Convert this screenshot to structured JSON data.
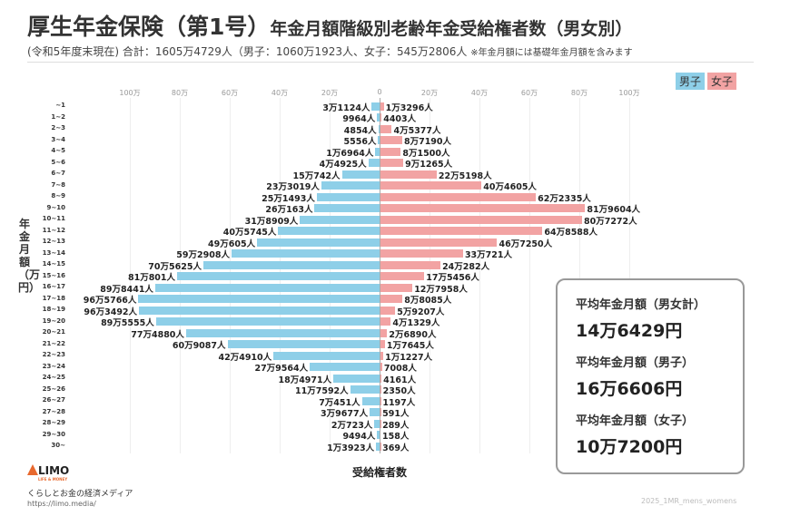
{
  "header": {
    "title_main": "厚生年金保険（第1号）",
    "title_rest": "年金月額階級別老齢年金受給権者数（男女別）",
    "subtitle": "(令和5年度末現在) 合計：1605万4729人（男子：1060万1923人、女子：545万2806人",
    "note": "※年金月額には基礎年金月額を含みます"
  },
  "legend": {
    "male": "男子",
    "female": "女子"
  },
  "summary": [
    {
      "label": "平均年金月額（男女計）",
      "value": "14万6429円"
    },
    {
      "label": "平均年金月額（男子）",
      "value": "16万6606円"
    },
    {
      "label": "平均年金月額（女子）",
      "value": "10万7200円"
    }
  ],
  "footer": {
    "logo": "LIMO",
    "logo_sub": "LIFE & MONEY",
    "tagline": "くらしとお金の経済メディア",
    "url": "https://limo.media/",
    "code": "2025_1MR_mens_womens"
  },
  "colors": {
    "male": "#8ecfe8",
    "female": "#f2a3a3"
  },
  "chart_data": {
    "type": "bar",
    "orientation": "horizontal-pyramid",
    "ylabel": "年金月額（万円）",
    "xlabel": "受給権者数",
    "xticks": [
      "100万",
      "80万",
      "60万",
      "40万",
      "20万",
      "0",
      "20万",
      "40万",
      "60万",
      "80万",
      "100万"
    ],
    "xtick_values": [
      -1000000,
      -800000,
      -600000,
      -400000,
      -200000,
      0,
      200000,
      400000,
      600000,
      800000,
      1000000
    ],
    "xlim": [
      0,
      1000000
    ],
    "categories": [
      "~1",
      "1~2",
      "2~3",
      "3~4",
      "4~5",
      "5~6",
      "6~7",
      "7~8",
      "8~9",
      "9~10",
      "10~11",
      "11~12",
      "12~13",
      "13~14",
      "14~15",
      "15~16",
      "16~17",
      "17~18",
      "18~19",
      "19~20",
      "20~21",
      "21~22",
      "22~23",
      "23~24",
      "24~25",
      "25~26",
      "26~27",
      "27~28",
      "28~29",
      "29~30",
      "30~"
    ],
    "series": [
      {
        "name": "男子",
        "values": [
          31124,
          9964,
          4854,
          5556,
          16964,
          44925,
          150742,
          233019,
          251493,
          260163,
          318909,
          405745,
          490605,
          592908,
          705625,
          810801,
          898441,
          965766,
          963492,
          895555,
          774880,
          609087,
          424910,
          279564,
          184971,
          117592,
          70451,
          39677,
          20723,
          9494,
          13923
        ],
        "labels": [
          "3万1124人",
          "9964人",
          "4854人",
          "5556人",
          "1万6964人",
          "4万4925人",
          "15万742人",
          "23万3019人",
          "25万1493人",
          "26万163人",
          "31万8909人",
          "40万5745人",
          "49万605人",
          "59万2908人",
          "70万5625人",
          "81万801人",
          "89万8441人",
          "96万5766人",
          "96万3492人",
          "89万5555人",
          "77万4880人",
          "60万9087人",
          "42万4910人",
          "27万9564人",
          "18万4971人",
          "11万7592人",
          "7万451人",
          "3万9677人",
          "2万723人",
          "9494人",
          "1万3923人"
        ]
      },
      {
        "name": "女子",
        "values": [
          13296,
          4403,
          45377,
          87190,
          81500,
          91265,
          225198,
          404605,
          622335,
          819604,
          807272,
          648588,
          467250,
          330721,
          240282,
          175456,
          127958,
          88085,
          59207,
          41329,
          26890,
          17645,
          11227,
          7008,
          4161,
          2350,
          1197,
          591,
          289,
          158,
          369
        ],
        "labels": [
          "1万3296人",
          "4403人",
          "4万5377人",
          "8万7190人",
          "8万1500人",
          "9万1265人",
          "22万5198人",
          "40万4605人",
          "62万2335人",
          "81万9604人",
          "80万7272人",
          "64万8588人",
          "46万7250人",
          "33万721人",
          "24万282人",
          "17万5456人",
          "12万7958人",
          "8万8085人",
          "5万9207人",
          "4万1329人",
          "2万6890人",
          "1万7645人",
          "1万1227人",
          "7008人",
          "4161人",
          "2350人",
          "1197人",
          "591人",
          "289人",
          "158人",
          "369人"
        ]
      }
    ]
  }
}
